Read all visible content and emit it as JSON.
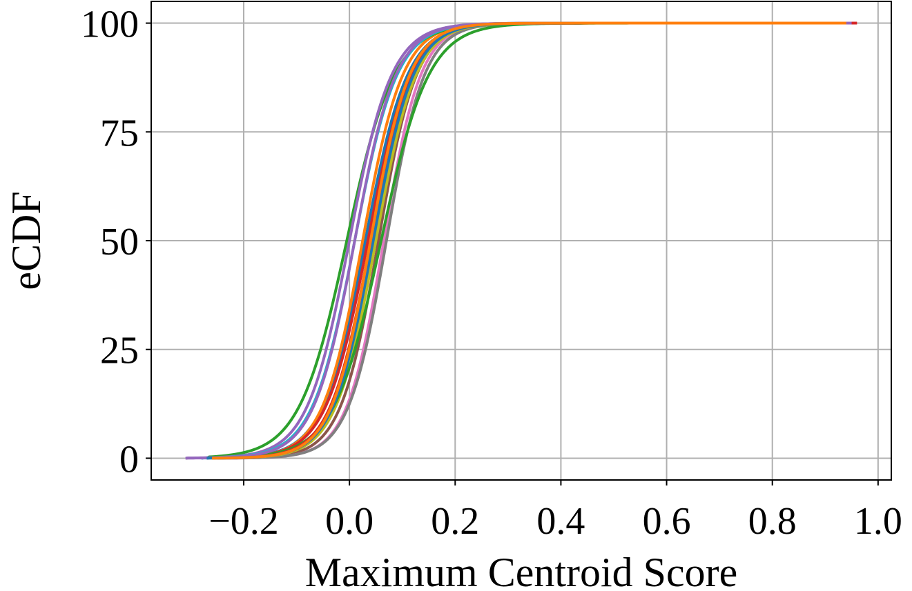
{
  "chart_data": {
    "type": "line",
    "title": "",
    "xlabel": "Maximum Centroid Score",
    "ylabel": "eCDF",
    "xlim": [
      -0.375,
      1.025
    ],
    "ylim": [
      -5,
      105
    ],
    "xticks": [
      -0.2,
      0.0,
      0.2,
      0.4,
      0.6,
      0.8,
      1.0
    ],
    "xtick_labels": [
      "−0.2",
      "0.0",
      "0.2",
      "0.4",
      "0.6",
      "0.8",
      "1.0"
    ],
    "yticks": [
      0,
      25,
      50,
      75,
      100
    ],
    "ytick_labels": [
      "0",
      "25",
      "50",
      "75",
      "100"
    ],
    "grid": true,
    "legend": "none",
    "series": [
      {
        "color": "#1f77b4",
        "median": 0.03,
        "scale": 0.04,
        "xmin": -0.28,
        "xmax": 0.93
      },
      {
        "color": "#ff7f0e",
        "median": 0.025,
        "scale": 0.038,
        "xmin": -0.27,
        "xmax": 0.94
      },
      {
        "color": "#2ca02c",
        "median": -0.005,
        "scale": 0.045,
        "xmin": -0.27,
        "xmax": 0.95
      },
      {
        "color": "#d62728",
        "median": 0.035,
        "scale": 0.04,
        "xmin": -0.26,
        "xmax": 0.96
      },
      {
        "color": "#9467bd",
        "median": 0.0,
        "scale": 0.04,
        "xmin": -0.31,
        "xmax": 0.92
      },
      {
        "color": "#8c564b",
        "median": 0.055,
        "scale": 0.036,
        "xmin": -0.25,
        "xmax": 0.93
      },
      {
        "color": "#e377c2",
        "median": 0.065,
        "scale": 0.035,
        "xmin": -0.24,
        "xmax": 0.94
      },
      {
        "color": "#7f7f7f",
        "median": 0.07,
        "scale": 0.036,
        "xmin": -0.25,
        "xmax": 0.93
      },
      {
        "color": "#bcbd22",
        "median": 0.05,
        "scale": 0.038,
        "xmin": -0.26,
        "xmax": 0.92
      },
      {
        "color": "#17becf",
        "median": 0.01,
        "scale": 0.04,
        "xmin": -0.27,
        "xmax": 0.93
      },
      {
        "color": "#2ca02c",
        "median": 0.06,
        "scale": 0.045,
        "xmin": -0.26,
        "xmax": 0.94
      },
      {
        "color": "#d62728",
        "median": 0.04,
        "scale": 0.038,
        "xmin": -0.26,
        "xmax": 0.96
      },
      {
        "color": "#9467bd",
        "median": 0.01,
        "scale": 0.039,
        "xmin": -0.31,
        "xmax": 0.95
      },
      {
        "color": "#1f77b4",
        "median": 0.045,
        "scale": 0.038,
        "xmin": -0.27,
        "xmax": 0.93
      },
      {
        "color": "#ff7f0e",
        "median": 0.04,
        "scale": 0.037,
        "xmin": -0.26,
        "xmax": 0.94
      }
    ]
  }
}
